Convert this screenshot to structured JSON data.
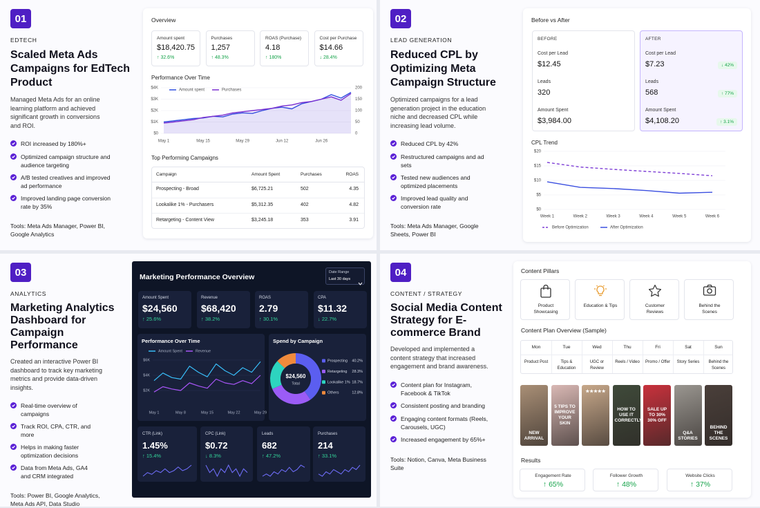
{
  "cases": [
    {
      "number": "01",
      "category": "EDTECH",
      "title": "Scaled Meta Ads Campaigns for EdTech Product",
      "description": "Managed Meta Ads for an online learning platform and achieved significant growth in conversions and ROI.",
      "bullets": [
        "ROI increased by 180%+",
        "Optimized campaign structure and audience targeting",
        "A/B tested creatives and improved ad performance",
        "Improved landing page conversion rate by 35%"
      ],
      "tools": "Tools: Meta Ads Manager, Power BI, Google Analytics"
    },
    {
      "number": "02",
      "category": "LEAD GENERATION",
      "title": "Reduced CPL by Optimizing Meta Campaign Structure",
      "description": "Optimized campaigns for a lead generation project in the education niche and decreased CPL while increasing lead volume.",
      "bullets": [
        "Reduced CPL by 42%",
        "Restructured campaigns and ad sets",
        "Tested new audiences and optimized placements",
        "Improved lead quality and conversion rate"
      ],
      "tools": "Tools: Meta Ads Manager, Google Sheets, Power BI"
    },
    {
      "number": "03",
      "category": "ANALYTICS",
      "title": "Marketing Analytics Dashboard for Campaign Performance",
      "description": "Created an interactive Power BI dashboard to track key marketing metrics and provide data-driven insights.",
      "bullets": [
        "Real-time overview of campaigns",
        "Track ROI, CPA, CTR, and more",
        "Helps in making faster optimization decisions",
        "Data from Meta Ads, GA4 and CRM integrated"
      ],
      "tools": "Tools: Power BI, Google Analytics, Meta Ads API, Data Studio"
    },
    {
      "number": "04",
      "category": "CONTENT / STRATEGY",
      "title": "Social Media Content Strategy for E-commerce Brand",
      "description": "Developed and implemented a content strategy that increased engagement and brand awareness.",
      "bullets": [
        "Content plan for Instagram, Facebook & TikTok",
        "Consistent posting and branding",
        "Engaging content formats (Reels, Carousels, UGC)",
        "Increased engagement by 65%+"
      ],
      "tools": "Tools: Notion, Canva, Meta Business Suite"
    }
  ],
  "edtech": {
    "overview_title": "Overview",
    "kpis": [
      {
        "label": "Amount spent",
        "value": "$18,420.75",
        "change": "↑ 32.6%"
      },
      {
        "label": "Purchases",
        "value": "1,257",
        "change": "↑ 48.3%"
      },
      {
        "label": "ROAS (Purchase)",
        "value": "4.18",
        "change": "↑ 180%"
      },
      {
        "label": "Cost per Purchase",
        "value": "$14.66",
        "change": "↓ 28.4%"
      }
    ],
    "chart": {
      "type": "line",
      "title": "Performance Over Time",
      "categories": [
        "May 1",
        null,
        null,
        null,
        "May 15",
        null,
        null,
        null,
        "May 29",
        null,
        null,
        null,
        "Jun 12",
        null,
        null,
        null,
        "Jun 26",
        null,
        null,
        null
      ],
      "series": [
        {
          "name": "Amount spent",
          "color": "#2f4fe0",
          "values": [
            1000,
            1100,
            1200,
            1300,
            1350,
            1500,
            1450,
            1700,
            1800,
            1750,
            2000,
            2200,
            2300,
            2150,
            2600,
            2800,
            3000,
            3400,
            3100,
            3600
          ]
        },
        {
          "name": "Purchases",
          "color": "#7a2fd0",
          "axis": "y2",
          "values": [
            45,
            50,
            55,
            60,
            70,
            75,
            80,
            90,
            95,
            100,
            105,
            110,
            120,
            125,
            135,
            140,
            150,
            160,
            145,
            175
          ]
        }
      ],
      "ylim": [
        0,
        4000
      ],
      "yticks": [
        {
          "value": 0,
          "label": "$0"
        },
        {
          "value": 1000,
          "label": "$1K"
        },
        {
          "value": 2000,
          "label": "$2K"
        },
        {
          "value": 3000,
          "label": "$3K"
        },
        {
          "value": 4000,
          "label": "$4K"
        }
      ],
      "y2lim": [
        0,
        200
      ],
      "y2ticks": [
        0,
        50,
        100,
        150,
        200
      ],
      "grid": true
    },
    "table": {
      "title": "Top Performing Campaigns",
      "columns": [
        "Campaign",
        "Amount Spent",
        "Purchases",
        "ROAS"
      ],
      "rows": [
        [
          "Prospecting - Broad",
          "$6,725.21",
          "502",
          "4.35"
        ],
        [
          "Lookalike 1% - Purchasers",
          "$5,312.35",
          "402",
          "4.82"
        ],
        [
          "Retargeting - Content View",
          "$3,245.18",
          "353",
          "3.91"
        ]
      ]
    }
  },
  "lead_gen": {
    "title": "Before vs After",
    "before": {
      "heading": "BEFORE",
      "metrics": [
        {
          "label": "Cost per Lead",
          "value": "$12.45"
        },
        {
          "label": "Leads",
          "value": "320"
        },
        {
          "label": "Amount Spent",
          "value": "$3,984.00"
        }
      ]
    },
    "after": {
      "heading": "AFTER",
      "metrics": [
        {
          "label": "Cost per Lead",
          "value": "$7.23",
          "change": "↓ 42%"
        },
        {
          "label": "Leads",
          "value": "568",
          "change": "↑ 77%"
        },
        {
          "label": "Amount Spent",
          "value": "$4,108.20",
          "change": "↑ 3.1%"
        }
      ]
    },
    "chart": {
      "type": "line",
      "title": "CPL Trend",
      "categories": [
        "Week 1",
        "Week 2",
        "Week 3",
        "Week 4",
        "Week 5",
        "Week 6"
      ],
      "series": [
        {
          "name": "Before Optimization",
          "color": "#7e3fd6",
          "dashed": true,
          "values": [
            16.2,
            14.6,
            13.8,
            13.1,
            12.4,
            11.6
          ]
        },
        {
          "name": "After Optimization",
          "color": "#3b4fe0",
          "values": [
            9.5,
            7.6,
            7.2,
            6.5,
            5.6,
            5.9
          ]
        }
      ],
      "ylim": [
        0,
        20
      ],
      "yticks": [
        {
          "value": 0,
          "label": "$0"
        },
        {
          "value": 5,
          "label": "$5"
        },
        {
          "value": 10,
          "label": "$10"
        },
        {
          "value": 15,
          "label": "$15"
        },
        {
          "value": 20,
          "label": "$20"
        }
      ],
      "grid": true
    }
  },
  "analytics": {
    "title": "Marketing Performance Overview",
    "date_range": {
      "label": "Date Range",
      "value": "Last 30 days"
    },
    "kpis": [
      {
        "label": "Amount Spent",
        "value": "$24,560",
        "change": "↑ 25.6%"
      },
      {
        "label": "Revenue",
        "value": "$68,420",
        "change": "↑ 38.2%"
      },
      {
        "label": "ROAS",
        "value": "2.79",
        "change": "↑ 30.1%"
      },
      {
        "label": "CPA",
        "value": "$11.32",
        "change": "↓ 22.7%"
      }
    ],
    "performance": {
      "type": "line",
      "title": "Performance Over Time",
      "categories": [
        "May 1",
        null,
        null,
        "May 8",
        null,
        null,
        "May 15",
        null,
        null,
        "May 22",
        null,
        null,
        "May 29"
      ],
      "series": [
        {
          "name": "Amount Spent",
          "color": "#38bdf8",
          "values": [
            3300,
            4300,
            3700,
            3500,
            5200,
            4400,
            3800,
            5500,
            4600,
            4000,
            5000,
            4400,
            5800
          ]
        },
        {
          "name": "Revenue",
          "color": "#a855f7",
          "values": [
            1800,
            2500,
            2200,
            2000,
            3000,
            2600,
            2300,
            3500,
            3000,
            2800,
            3300,
            2900,
            4000
          ]
        }
      ],
      "ylim": [
        0,
        7000
      ],
      "yticks": [
        {
          "value": 2000,
          "label": "$2K"
        },
        {
          "value": 4000,
          "label": "$4K"
        },
        {
          "value": 6000,
          "label": "$6K"
        }
      ],
      "grid": true
    },
    "spend": {
      "type": "pie",
      "title": "Spend by Campaign",
      "center_value": "$24,560",
      "center_label": "Total",
      "categories": [
        "Prospecting",
        "Retargeting",
        "Lookalike 1%",
        "Others"
      ],
      "values": [
        40.2,
        28.3,
        18.7,
        12.8
      ],
      "value_labels": [
        "40.2%",
        "28.3%",
        "18.7%",
        "12.8%"
      ],
      "colors": [
        "#5b5ef0",
        "#9b5cf6",
        "#2dd4bf",
        "#f08a3c"
      ]
    },
    "bottom_kpis": [
      {
        "label": "CTR (Link)",
        "value": "1.45%",
        "change": "↑ 15.4%",
        "sparkline": [
          3,
          5,
          4,
          6,
          5,
          7,
          5,
          6,
          8,
          6,
          7,
          9
        ]
      },
      {
        "label": "CPC (Link)",
        "value": "$0.72",
        "change": "↓ 8.3%",
        "sparkline": [
          6,
          4,
          5,
          3,
          5,
          4,
          6,
          4,
          5,
          3,
          5,
          4
        ]
      },
      {
        "label": "Leads",
        "value": "682",
        "change": "↑ 47.2%",
        "sparkline": [
          3,
          4,
          3,
          5,
          4,
          6,
          5,
          7,
          5,
          6,
          8,
          7
        ]
      },
      {
        "label": "Purchases",
        "value": "214",
        "change": "↑ 33.1%",
        "sparkline": [
          4,
          3,
          5,
          4,
          6,
          5,
          4,
          6,
          5,
          7,
          6,
          8
        ]
      }
    ]
  },
  "content": {
    "pillars_title": "Content Pillars",
    "pillars": [
      "Product Showcasing",
      "Education & Tips",
      "Customer Reviews",
      "Behind the Scenes"
    ],
    "plan_title": "Content Plan Overview (Sample)",
    "days": [
      "Mon",
      "Tue",
      "Wed",
      "Thu",
      "Fri",
      "Sat",
      "Sun"
    ],
    "plan": [
      "Product Post",
      "Tips & Education",
      "UGC or Review",
      "Reels / Video",
      "Promo / Offer",
      "Story Series",
      "Behind the Scenes"
    ],
    "thumbnails": [
      {
        "text": "NEW ARRIVAL",
        "color": "#a98f76"
      },
      {
        "text": "5 TIPS TO IMPROVE YOUR SKIN",
        "color": "#d9b8b4"
      },
      {
        "text": "★★★★★",
        "color": "#c7a88a"
      },
      {
        "text": "HOW TO USE IT CORRECTLY",
        "color": "#3f4a3a"
      },
      {
        "text": "SALE UP TO 30% 30% OFF",
        "color": "#c8313c"
      },
      {
        "text": "Q&A STORIES",
        "color": "#9a9690"
      },
      {
        "text": "BEHIND THE SCENES",
        "color": "#4a3f3a"
      }
    ],
    "results_title": "Results",
    "results": [
      {
        "label": "Engagement Rate",
        "value": "↑ 65%"
      },
      {
        "label": "Follower Growth",
        "value": "↑ 48%"
      },
      {
        "label": "Website Clicks",
        "value": "↑ 37%"
      }
    ]
  }
}
